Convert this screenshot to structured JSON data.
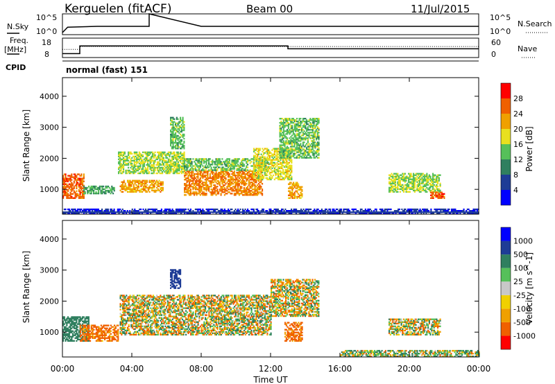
{
  "header": {
    "station": "Kerguelen (fitACF)",
    "beam": "Beam 00",
    "date": "11/Jul/2015"
  },
  "noise_panel": {
    "left_label": "N.Sky",
    "right_label": "N.Search",
    "left_ticks": [
      "10^5",
      "10^0"
    ],
    "right_ticks": [
      "10^5",
      "10^0"
    ]
  },
  "freq_panel": {
    "left_label_1": "Freq.",
    "left_label_2": "[MHz]",
    "right_label": "Nave",
    "left_ticks": [
      "18",
      "8"
    ],
    "right_ticks": [
      "60",
      "0"
    ]
  },
  "cpid": {
    "label": "CPID",
    "value": "normal (fast) 151"
  },
  "x_axis": {
    "label": "Time UT",
    "ticks": [
      "00:00",
      "04:00",
      "08:00",
      "12:00",
      "16:00",
      "20:00",
      "00:00"
    ]
  },
  "power_panel": {
    "ylabel": "Slant Range [km]",
    "yticks": [
      "4000",
      "3000",
      "2000",
      "1000"
    ],
    "colorbar_label": "Power [dB]",
    "colorbar_ticks": [
      "28",
      "24",
      "20",
      "16",
      "12",
      "8",
      "4"
    ],
    "colors": [
      "#0000ff",
      "#1e3c96",
      "#2f7f5f",
      "#56c05a",
      "#e8e020",
      "#f0a000",
      "#f06000",
      "#ff0000"
    ]
  },
  "velocity_panel": {
    "ylabel": "Slant Range [km]",
    "yticks": [
      "4000",
      "3000",
      "2000",
      "1000"
    ],
    "colorbar_label": "Velocity [m s^-1]",
    "colorbar_ticks": [
      "1000",
      "500",
      "100",
      "25",
      "-25",
      "-100",
      "-500",
      "-1000"
    ],
    "colors": [
      "#ff0000",
      "#f06000",
      "#f0a000",
      "#f0d000",
      "#c8c8c8",
      "#56c05a",
      "#2f7f5f",
      "#1e3c96",
      "#0000ff"
    ]
  },
  "chart_data": [
    {
      "type": "line",
      "series": [
        {
          "name": "N.Sky",
          "x_hours": [
            0,
            0.3,
            2,
            5,
            5,
            8,
            10,
            12,
            16,
            20,
            24
          ],
          "y_log10": [
            0.5,
            1.8,
            2.0,
            2.0,
            5.0,
            2.0,
            2.0,
            2.0,
            2.0,
            2.0,
            2.0
          ]
        }
      ],
      "xlim": [
        0,
        24
      ],
      "ylim": [
        0,
        5
      ]
    },
    {
      "type": "line",
      "series": [
        {
          "name": "Freq",
          "x_hours": [
            0,
            1,
            1,
            13,
            13,
            24
          ],
          "y": [
            10,
            10,
            14,
            14,
            12.5,
            12.5
          ]
        },
        {
          "name": "Nave",
          "x_hours": [
            0,
            1,
            1,
            24
          ],
          "y": [
            25,
            25,
            34,
            34
          ]
        }
      ],
      "xlim": [
        0,
        24
      ],
      "ylim": [
        8,
        18
      ]
    },
    {
      "type": "heatmap",
      "quantity": "Power [dB]",
      "x_range_hours": [
        0,
        24
      ],
      "y_range_km": [
        200,
        4600
      ],
      "value_range": [
        0,
        32
      ],
      "regions": [
        {
          "t": [
            0.0,
            1.2
          ],
          "r": [
            700,
            1500
          ],
          "level": 26
        },
        {
          "t": [
            1.2,
            3.0
          ],
          "r": [
            850,
            1100
          ],
          "level": 12
        },
        {
          "t": [
            3.3,
            5.8
          ],
          "r": [
            900,
            1300
          ],
          "level": 22
        },
        {
          "t": [
            3.2,
            7.0
          ],
          "r": [
            1500,
            2200
          ],
          "level": 16
        },
        {
          "t": [
            6.2,
            7.0
          ],
          "r": [
            2300,
            3300
          ],
          "level": 14
        },
        {
          "t": [
            7.0,
            11.5
          ],
          "r": [
            800,
            1600
          ],
          "level": 24
        },
        {
          "t": [
            7.0,
            11.8
          ],
          "r": [
            1600,
            2000
          ],
          "level": 14
        },
        {
          "t": [
            11.0,
            13.2
          ],
          "r": [
            1300,
            2300
          ],
          "level": 18
        },
        {
          "t": [
            12.5,
            14.8
          ],
          "r": [
            2000,
            3300
          ],
          "level": 14
        },
        {
          "t": [
            13.0,
            13.8
          ],
          "r": [
            700,
            1200
          ],
          "level": 22
        },
        {
          "t": [
            18.8,
            21.8
          ],
          "r": [
            900,
            1500
          ],
          "level": 16
        },
        {
          "t": [
            21.2,
            22.0
          ],
          "r": [
            700,
            900
          ],
          "level": 26
        },
        {
          "t": [
            0.0,
            24.0
          ],
          "r": [
            200,
            350
          ],
          "level": 4
        }
      ]
    },
    {
      "type": "heatmap",
      "quantity": "Velocity [m s^-1]",
      "x_range_hours": [
        0,
        24
      ],
      "y_range_km": [
        200,
        4600
      ],
      "value_range": [
        -1000,
        1000
      ],
      "regions": [
        {
          "t": [
            0.0,
            1.5
          ],
          "r": [
            700,
            1500
          ],
          "level": 300
        },
        {
          "t": [
            1.0,
            3.2
          ],
          "r": [
            700,
            1200
          ],
          "level": -200
        },
        {
          "t": [
            3.3,
            12.0
          ],
          "r": [
            900,
            2200
          ],
          "level": 0
        },
        {
          "t": [
            6.2,
            6.8
          ],
          "r": [
            2400,
            3000
          ],
          "level": 800
        },
        {
          "t": [
            12.0,
            14.8
          ],
          "r": [
            1500,
            2700
          ],
          "level": 0
        },
        {
          "t": [
            12.8,
            13.8
          ],
          "r": [
            700,
            1300
          ],
          "level": -200
        },
        {
          "t": [
            18.8,
            21.8
          ],
          "r": [
            900,
            1400
          ],
          "level": 0
        },
        {
          "t": [
            16.0,
            24.0
          ],
          "r": [
            200,
            400
          ],
          "level": 60
        }
      ]
    }
  ]
}
